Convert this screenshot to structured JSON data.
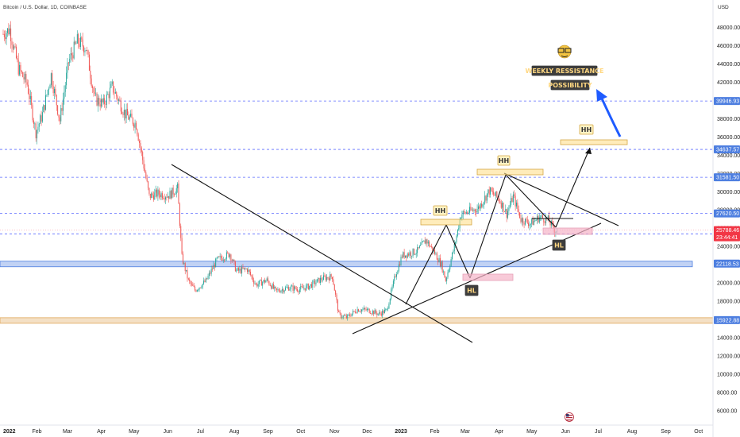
{
  "chart_data": {
    "type": "candlestick",
    "title": "Bitcoin / U.S. Dollar, 1D, COINBASE",
    "currency": "USD",
    "x_ticks": [
      "2022",
      "Feb",
      "Mar",
      "Apr",
      "May",
      "Jun",
      "Jul",
      "Aug",
      "Sep",
      "Oct",
      "Nov",
      "Dec",
      "2023",
      "Feb",
      "Mar",
      "Apr",
      "May",
      "Jun",
      "Jul",
      "Aug",
      "Sep",
      "Oct"
    ],
    "y_ticks": [
      6000,
      8000,
      10000,
      12000,
      14000,
      16000,
      18000,
      20000,
      22000,
      24000,
      26000,
      28000,
      30000,
      32000,
      34000,
      36000,
      38000,
      40000,
      42000,
      44000,
      46000,
      48000
    ],
    "y_range": [
      4500,
      49800
    ],
    "levels": [
      {
        "label": "39946.93",
        "value": 39946.93,
        "style": "dashed",
        "color": "#5b6bff"
      },
      {
        "label": "34637.57",
        "value": 34637.57,
        "style": "dashed",
        "color": "#5b6bff"
      },
      {
        "label": "31581.50",
        "value": 31581.5,
        "style": "dashed",
        "color": "#5b6bff"
      },
      {
        "label": "27620.50",
        "value": 27620.5,
        "style": "dashed",
        "color": "#5b6bff"
      },
      {
        "label": "25378.84",
        "value": 25378.84,
        "style": "dashed",
        "color": "#5b6bff"
      },
      {
        "label": "22118.53",
        "value": 22118.53,
        "style": "zone",
        "color": "#4e7fe0"
      },
      {
        "label": "15922.88",
        "value": 15922.88,
        "style": "zone",
        "color": "#e0a75a"
      }
    ],
    "current_price": {
      "label": "25788.46",
      "countdown": "23:44:41",
      "value": 25788.46,
      "color": "#f23645"
    },
    "annotations": [
      {
        "text": "HH",
        "kind": "box-yellow"
      },
      {
        "text": "HH",
        "kind": "box-yellow"
      },
      {
        "text": "HH",
        "kind": "box-yellow"
      },
      {
        "text": "HL",
        "kind": "box-dark"
      },
      {
        "text": "HL",
        "kind": "box-dark"
      },
      {
        "text": "WEEKLY RESSISTANCE",
        "kind": "box-dark"
      },
      {
        "text": "POSSIBILITY",
        "kind": "box-dark"
      }
    ],
    "anchors": [
      {
        "date": 0,
        "close": 47300
      },
      {
        "date": 6,
        "close": 47800
      },
      {
        "date": 14,
        "close": 43500
      },
      {
        "date": 22,
        "close": 41800
      },
      {
        "date": 30,
        "close": 36500
      },
      {
        "date": 36,
        "close": 38500
      },
      {
        "date": 44,
        "close": 42800
      },
      {
        "date": 52,
        "close": 37800
      },
      {
        "date": 60,
        "close": 44200
      },
      {
        "date": 68,
        "close": 46500
      },
      {
        "date": 76,
        "close": 45800
      },
      {
        "date": 84,
        "close": 40200
      },
      {
        "date": 92,
        "close": 39600
      },
      {
        "date": 100,
        "close": 41500
      },
      {
        "date": 112,
        "close": 38500
      },
      {
        "date": 122,
        "close": 37400
      },
      {
        "date": 128,
        "close": 33500
      },
      {
        "date": 134,
        "close": 29500
      },
      {
        "date": 142,
        "close": 29800
      },
      {
        "date": 152,
        "close": 29600
      },
      {
        "date": 160,
        "close": 30400
      },
      {
        "date": 164,
        "close": 22800
      },
      {
        "date": 170,
        "close": 20200
      },
      {
        "date": 176,
        "close": 19200
      },
      {
        "date": 186,
        "close": 20200
      },
      {
        "date": 196,
        "close": 22500
      },
      {
        "date": 208,
        "close": 23200
      },
      {
        "date": 214,
        "close": 21300
      },
      {
        "date": 224,
        "close": 21500
      },
      {
        "date": 232,
        "close": 19800
      },
      {
        "date": 242,
        "close": 20300
      },
      {
        "date": 250,
        "close": 19100
      },
      {
        "date": 262,
        "close": 19500
      },
      {
        "date": 272,
        "close": 19300
      },
      {
        "date": 280,
        "close": 19600
      },
      {
        "date": 293,
        "close": 20500
      },
      {
        "date": 302,
        "close": 20700
      },
      {
        "date": 308,
        "close": 16500
      },
      {
        "date": 315,
        "close": 16200
      },
      {
        "date": 325,
        "close": 17100
      },
      {
        "date": 335,
        "close": 17000
      },
      {
        "date": 345,
        "close": 16600
      },
      {
        "date": 352,
        "close": 17000
      },
      {
        "date": 360,
        "close": 20900
      },
      {
        "date": 366,
        "close": 23000
      },
      {
        "date": 380,
        "close": 23500
      },
      {
        "date": 388,
        "close": 24700
      },
      {
        "date": 396,
        "close": 23300
      },
      {
        "date": 402,
        "close": 22000
      },
      {
        "date": 406,
        "close": 20300
      },
      {
        "date": 414,
        "close": 24000
      },
      {
        "date": 420,
        "close": 27500
      },
      {
        "date": 436,
        "close": 28200
      },
      {
        "date": 446,
        "close": 30100
      },
      {
        "date": 455,
        "close": 29200
      },
      {
        "date": 462,
        "close": 27600
      },
      {
        "date": 468,
        "close": 29500
      },
      {
        "date": 475,
        "close": 27000
      },
      {
        "date": 484,
        "close": 26500
      },
      {
        "date": 492,
        "close": 27200
      },
      {
        "date": 500,
        "close": 26900
      },
      {
        "date": 506,
        "close": 25800
      },
      {
        "date": 509,
        "close": 25788
      }
    ]
  }
}
